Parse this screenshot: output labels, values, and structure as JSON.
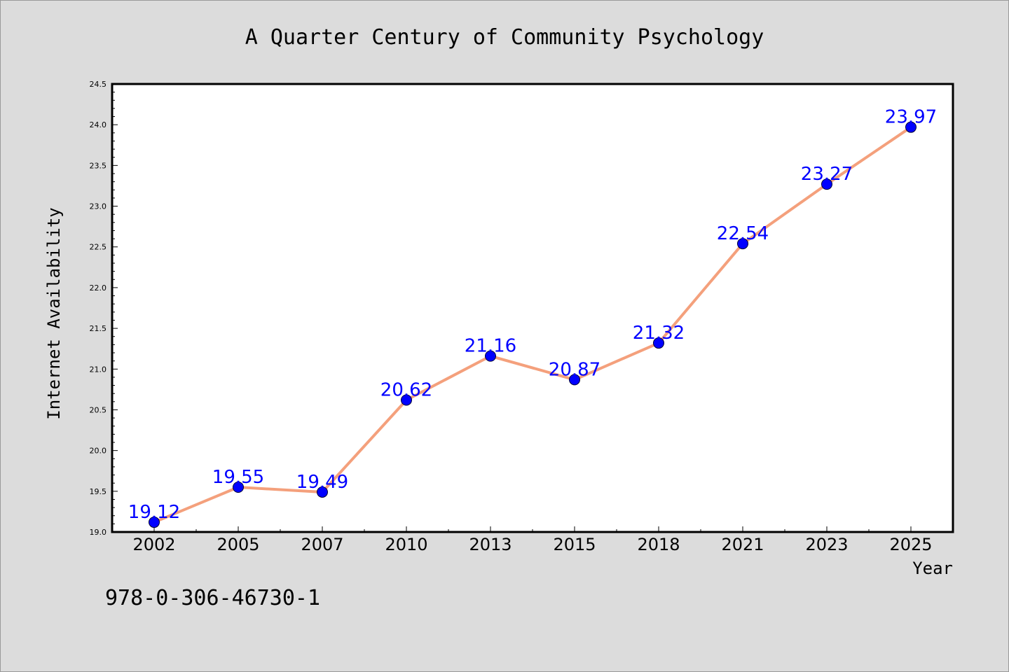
{
  "chart_data": {
    "type": "line",
    "title": "A Quarter Century of Community Psychology",
    "xlabel": "Year",
    "ylabel": "Internet Availability",
    "categories": [
      "2002",
      "2005",
      "2007",
      "2010",
      "2013",
      "2015",
      "2018",
      "2021",
      "2023",
      "2025"
    ],
    "series": [
      {
        "values": [
          19.12,
          19.55,
          19.49,
          20.62,
          21.16,
          20.87,
          21.32,
          22.54,
          23.27,
          23.97
        ]
      }
    ],
    "data_labels": [
      "19.12",
      "19.55",
      "19.49",
      "20.62",
      "21.16",
      "20.87",
      "21.32",
      "22.54",
      "23.27",
      "23.97"
    ],
    "ylim": [
      19.0,
      24.5
    ],
    "yticks": [
      "19.0",
      "19.5",
      "20.0",
      "20.5",
      "21.0",
      "21.5",
      "22.0",
      "22.5",
      "23.0",
      "23.5",
      "24.0",
      "24.5"
    ],
    "grid": false,
    "line_color": "#f4a07c",
    "marker_color": "#0000ff"
  },
  "footnote": "978-0-306-46730-1"
}
